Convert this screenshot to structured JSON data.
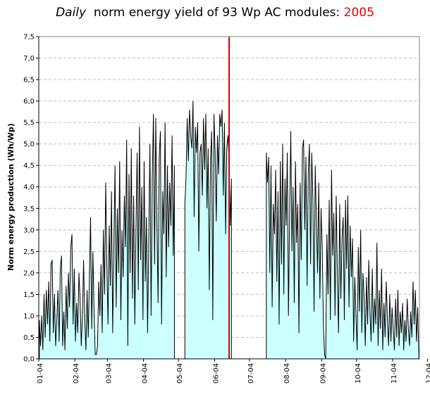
{
  "title": {
    "italic_part": "Daily",
    "main_part": "norm energy yield of 93 Wp AC modules:",
    "year": "2005"
  },
  "colors": {
    "fill": "#ccffff",
    "line": "#000000",
    "marker": "#e00000",
    "year_text": "#e00000",
    "grid": "#bdbdbd"
  },
  "chart_data": {
    "type": "area",
    "title": "Daily norm energy yield of 93 Wp AC modules: 2005",
    "ylabel": "Norm energy production (Wh/Wp)",
    "xlabel": "",
    "ylim": [
      0,
      7.5
    ],
    "y_ticks": [
      "0,0",
      "0,5",
      "1,0",
      "1,5",
      "2,0",
      "2,5",
      "3,0",
      "3,5",
      "4,0",
      "4,5",
      "5,0",
      "5,5",
      "6,0",
      "6,5",
      "7,0",
      "7,5"
    ],
    "x_ticks": [
      "01-04",
      "02-04",
      "03-04",
      "04-04",
      "05-04",
      "06-04",
      "07-04",
      "08-04",
      "09-04",
      "10-04",
      "11-04",
      "12-04"
    ],
    "grid": "horizontal dashed",
    "marker_day": 163,
    "gaps": [
      [
        117,
        124
      ],
      [
        166,
        194
      ]
    ],
    "series": [
      {
        "values": [
          0.9,
          0.3,
          1.0,
          0.2,
          1.5,
          0.5,
          1.6,
          0.8,
          1.8,
          0.4,
          2.2,
          2.3,
          0.6,
          1.5,
          0.3,
          0.9,
          1.6,
          0.4,
          2.1,
          2.4,
          0.3,
          1.1,
          0.2,
          1.7,
          0.7,
          2.0,
          1.2,
          2.6,
          2.9,
          0.8,
          2.1,
          0.4,
          1.3,
          0.6,
          2.0,
          1.4,
          0.3,
          1.0,
          2.3,
          0.9,
          0.2,
          1.6,
          0.5,
          1.9,
          3.3,
          0.7,
          2.5,
          1.1,
          0.1,
          0.1,
          0.3,
          1.8,
          1.0,
          2.2,
          0.6,
          3.0,
          1.5,
          4.1,
          2.2,
          0.8,
          3.1,
          1.7,
          3.9,
          0.6,
          2.6,
          4.5,
          1.2,
          3.5,
          2.0,
          4.6,
          0.9,
          3.0,
          1.9,
          3.8,
          2.6,
          5.1,
          0.3,
          4.3,
          2.0,
          4.9,
          1.4,
          3.8,
          0.8,
          3.0,
          4.8,
          1.6,
          5.4,
          2.3,
          4.0,
          0.9,
          4.6,
          1.8,
          3.3,
          0.6,
          2.8,
          5.0,
          1.0,
          4.2,
          5.7,
          2.2,
          5.6,
          3.2,
          1.3,
          4.7,
          5.3,
          0.8,
          3.9,
          2.9,
          5.5,
          1.9,
          4.5,
          2.6,
          4.1,
          3.1,
          5.2,
          2.4,
          4.5,
          0,
          0,
          0,
          0,
          0,
          0,
          0,
          0,
          3.6,
          4.2,
          5.6,
          4.6,
          5.8,
          5.2,
          4.9,
          6.0,
          3.3,
          5.4,
          4.8,
          5.5,
          2.5,
          4.8,
          5.0,
          3.8,
          5.6,
          4.4,
          5.7,
          3.5,
          4.9,
          1.6,
          4.6,
          5.3,
          0.9,
          5.7,
          4.8,
          3.2,
          5.2,
          4.3,
          5.7,
          5.4,
          5.8,
          3.8,
          5.5,
          2.9,
          4.9,
          5.2,
          4.6,
          3.1,
          4.2,
          0,
          0,
          0,
          0,
          0,
          0,
          0,
          0,
          0,
          0,
          0,
          0,
          0,
          0,
          0,
          0,
          0,
          0,
          0,
          0,
          0,
          0,
          0,
          0,
          0,
          0,
          0,
          0,
          0,
          4.8,
          4.1,
          4.7,
          2.0,
          4.5,
          1.2,
          3.6,
          2.9,
          4.4,
          1.8,
          3.9,
          0.8,
          4.6,
          2.2,
          5.0,
          1.5,
          4.2,
          3.1,
          4.8,
          1.0,
          3.4,
          5.3,
          2.5,
          4.0,
          1.3,
          4.6,
          2.7,
          3.6,
          0.6,
          4.1,
          2.3,
          4.9,
          5.1,
          3.0,
          4.7,
          1.7,
          4.3,
          5.0,
          2.2,
          4.8,
          3.7,
          1.1,
          4.5,
          3.2,
          2.0,
          4.1,
          1.4,
          3.5,
          2.6,
          0.8,
          0.1,
          0.0,
          2.9,
          1.5,
          3.7,
          0.9,
          4.4,
          2.4,
          3.4,
          1.0,
          3.8,
          2.0,
          0.6,
          3.6,
          1.4,
          2.8,
          3.3,
          0.9,
          3.7,
          2.1,
          3.8,
          1.2,
          3.1,
          1.9,
          2.8,
          0.4,
          1.9,
          1.0,
          0.2,
          2.6,
          1.1,
          3.0,
          0.6,
          2.0,
          1.4,
          0.3,
          1.9,
          0.8,
          2.3,
          1.1,
          0.4,
          2.1,
          0.6,
          1.4,
          0.8,
          2.7,
          0.3,
          1.6,
          0.7,
          2.1,
          0.2,
          1.3,
          0.5,
          1.8,
          0.9,
          0.3,
          1.5,
          0.4,
          1.2,
          0.7,
          0.2,
          1.4,
          0.5,
          1.6,
          0.3,
          1.1,
          0.6,
          1.3,
          0.2,
          0.9,
          0.4,
          1.4,
          0.7,
          0.3,
          1.1,
          0.5,
          1.8,
          0.8,
          1.6,
          0.4,
          1.2,
          0.1
        ]
      }
    ]
  }
}
